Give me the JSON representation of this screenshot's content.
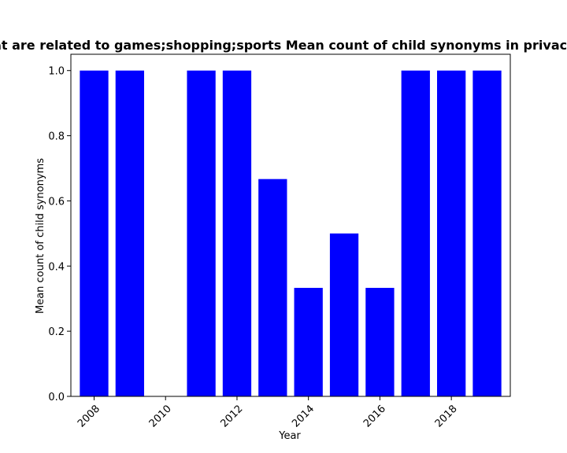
{
  "chart_data": {
    "type": "bar",
    "title": "Mean count of child synonyms in privacy policies of apps that are related to games;shopping;sports Mean count of child synonyms in privacy policies of apps that are related to games;shopping;sports",
    "xlabel": "Year",
    "ylabel": "Mean count of child synonyms",
    "x": [
      2008,
      2009,
      2010,
      2011,
      2012,
      2013,
      2014,
      2015,
      2016,
      2017,
      2018,
      2019
    ],
    "values": [
      1.0,
      1.0,
      0.0,
      1.0,
      1.0,
      0.667,
      0.333,
      0.5,
      0.333,
      1.0,
      1.0,
      1.0
    ],
    "xlim": [
      2007.35,
      2019.65
    ],
    "ylim": [
      0,
      1.05
    ],
    "xticks": [
      2008,
      2010,
      2012,
      2014,
      2016,
      2018
    ],
    "yticks": [
      0.0,
      0.2,
      0.4,
      0.6,
      0.8,
      1.0
    ],
    "ytick_labels": [
      "0.0",
      "0.2",
      "0.4",
      "0.6",
      "0.8",
      "1.0"
    ],
    "bar_color": "#0000ff",
    "grid": false,
    "legend": false
  }
}
